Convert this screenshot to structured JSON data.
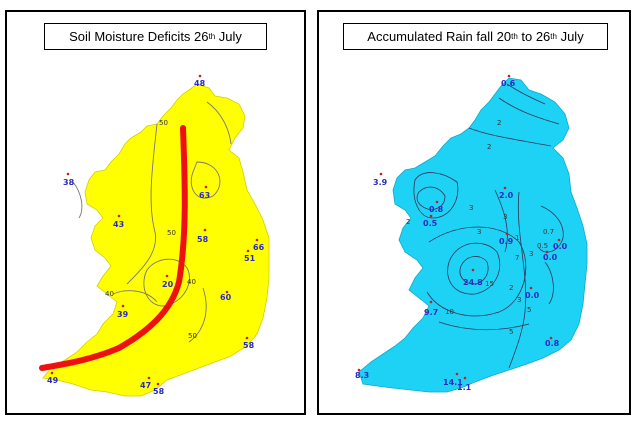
{
  "left_map": {
    "title_prefix": "Soil Moisture Deficits 26",
    "title_sup": "th",
    "title_suffix": " July",
    "fill_color": "#ffff00",
    "stations": [
      "48",
      "38",
      "63",
      "43",
      "58",
      "66",
      "51",
      "20",
      "39",
      "60",
      "58",
      "49",
      "47",
      "58"
    ],
    "contour_labels": [
      "50",
      "50",
      "40",
      "40",
      "50"
    ],
    "line_color": "#ee1111"
  },
  "right_map": {
    "title_prefix": "Accumulated Rain fall 20",
    "title_sup1": "th",
    "title_middle": " to 26",
    "title_sup2": "th",
    "title_suffix": " July",
    "fill_color": "#1ed2f5",
    "stations": [
      "0.6",
      "3.9",
      "0.8",
      "0.5",
      "2.0",
      "0.9",
      "0.0",
      "0.0",
      "24.8",
      "0.0",
      "9.7",
      "0.8",
      "8.3",
      "14.1",
      "1.1"
    ],
    "contour_labels": [
      "2",
      "2",
      "3",
      "3",
      "3",
      "2",
      "0.7",
      "0.5",
      "15",
      "10",
      "5",
      "2",
      "3",
      "5",
      "1",
      "3",
      "7"
    ]
  }
}
